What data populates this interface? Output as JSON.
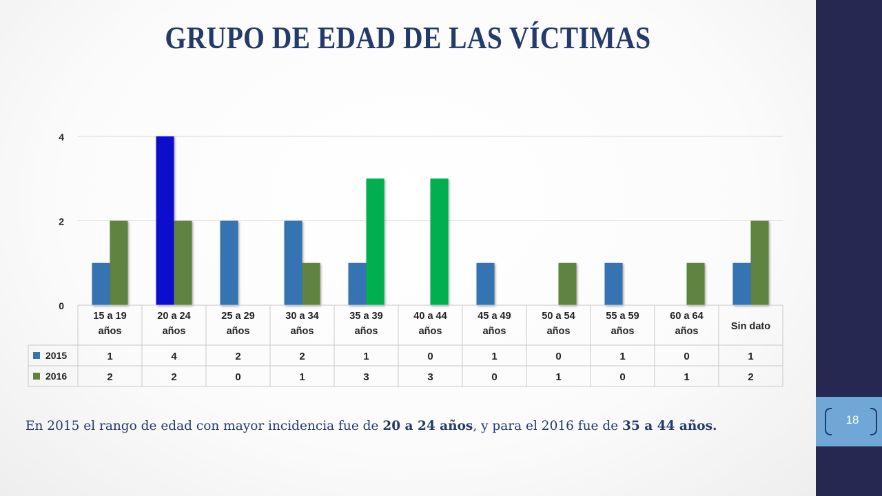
{
  "slide": {
    "title": "GRUPO DE EDAD DE LAS VÍCTIMAS",
    "page_number": "18",
    "caption": {
      "part1": "En 2015 el rango de edad con mayor incidencia fue de ",
      "bold1": "20 a 24 años",
      "part2": ", y para el 2016 fue de ",
      "bold2": "35 a 44 años."
    }
  },
  "colors": {
    "title": "#243a6b",
    "sidebar": "#272852",
    "page_tab": "#6fa8d6",
    "series_2015": "#3573b3",
    "series_2016": "#5e8341",
    "highlight_2015_max": "#0a10cf",
    "highlight_2016_max": "#00b050"
  },
  "chart_data": {
    "type": "bar",
    "categories": [
      [
        "15 a 19",
        "años"
      ],
      [
        "20 a 24",
        "años"
      ],
      [
        "25 a 29",
        "años"
      ],
      [
        "30 a 34",
        "años"
      ],
      [
        "35 a 39",
        "años"
      ],
      [
        "40 a 44",
        "años"
      ],
      [
        "45 a 49",
        "años"
      ],
      [
        "50 a 54",
        "años"
      ],
      [
        "55 a 59",
        "años"
      ],
      [
        "60 a 64",
        "años"
      ],
      [
        "Sin dato"
      ]
    ],
    "series": [
      {
        "name": "2015",
        "values": [
          1,
          4,
          2,
          2,
          1,
          0,
          1,
          0,
          1,
          0,
          1
        ]
      },
      {
        "name": "2016",
        "values": [
          2,
          2,
          0,
          1,
          3,
          3,
          0,
          1,
          0,
          1,
          2
        ]
      }
    ],
    "highlights": [
      {
        "series": 0,
        "category": 1,
        "color": "#0a10cf"
      },
      {
        "series": 1,
        "category": 4,
        "color": "#00b050"
      },
      {
        "series": 1,
        "category": 5,
        "color": "#00b050"
      }
    ],
    "yticks": [
      0,
      2,
      4
    ],
    "ylim": [
      0,
      4
    ],
    "grid": true,
    "data_table": true
  }
}
